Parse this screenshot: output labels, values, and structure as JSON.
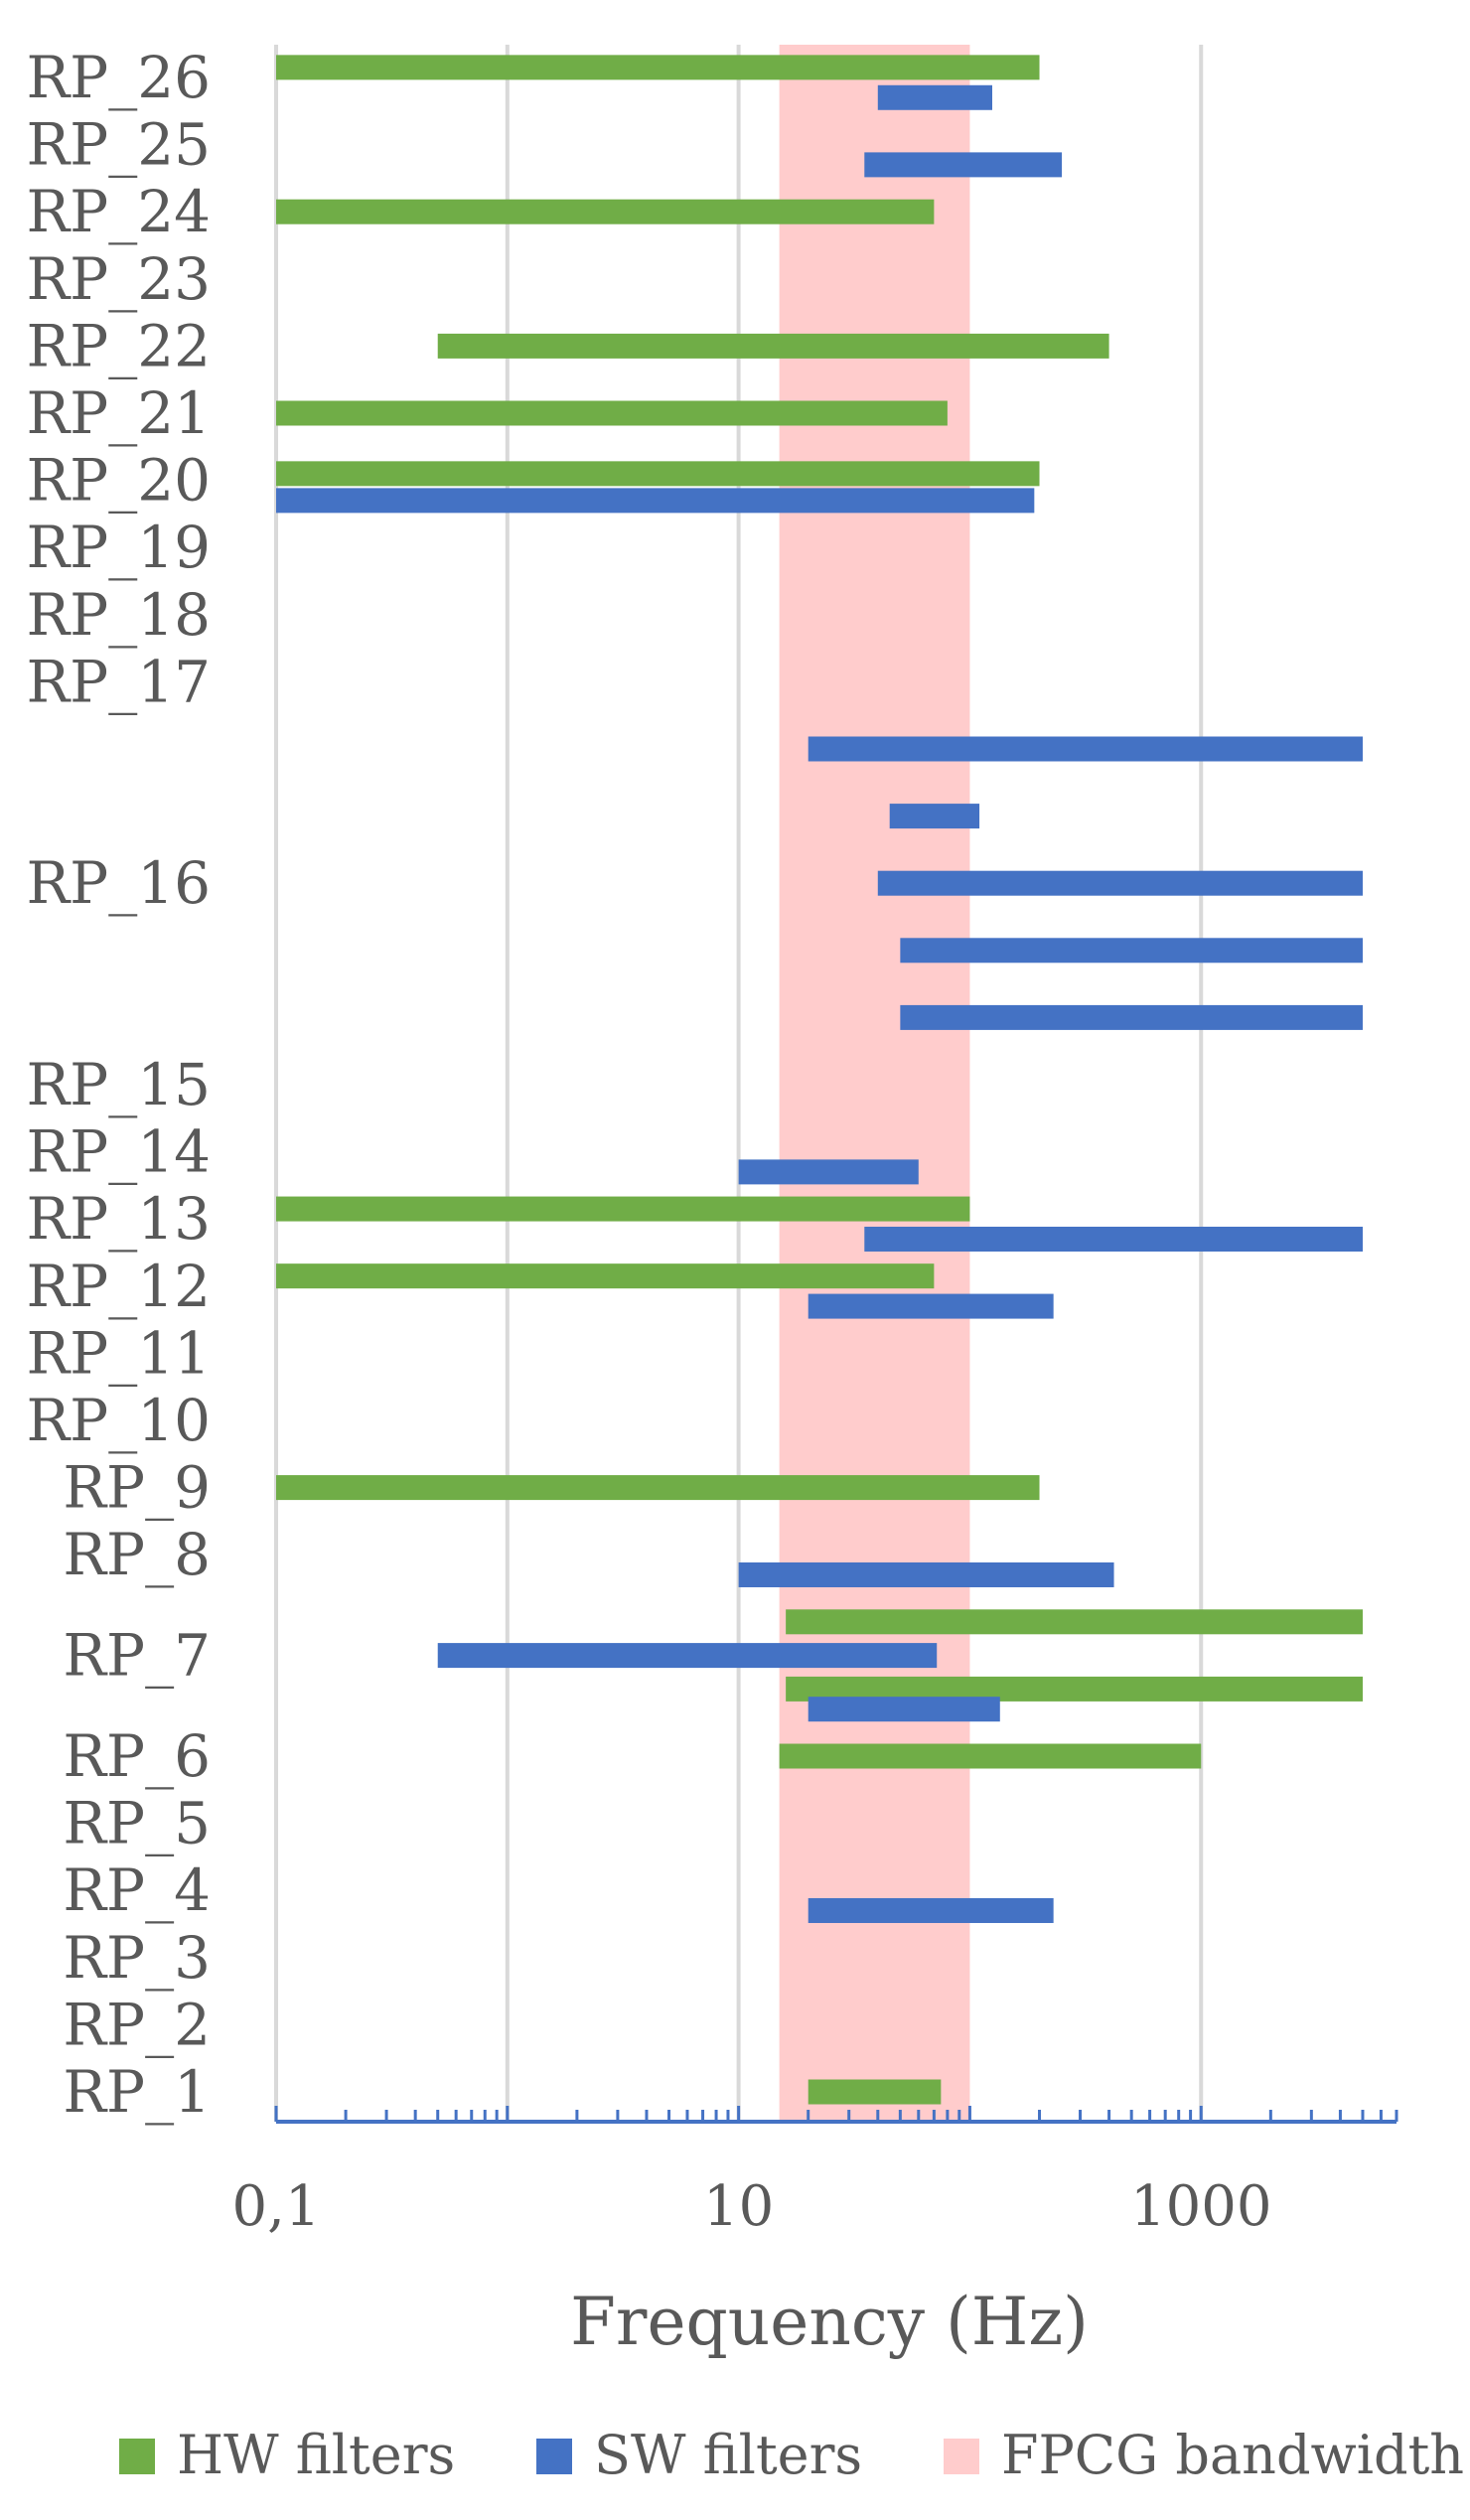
{
  "chart_data": {
    "type": "bar",
    "orientation": "horizontal-range",
    "xlabel": "Frequency (Hz)",
    "x_scale": "log",
    "xlim": [
      0.1,
      7000
    ],
    "x_ticks": [
      {
        "value": 0.1,
        "label": "0,1"
      },
      {
        "value": 10,
        "label": "10"
      },
      {
        "value": 1000,
        "label": "1000"
      }
    ],
    "grid_lines_x": [
      0.1,
      1,
      10,
      1000
    ],
    "row_labels": [
      {
        "label": "RP_26",
        "row": 0
      },
      {
        "label": "RP_25",
        "row": 1
      },
      {
        "label": "RP_24",
        "row": 2
      },
      {
        "label": "RP_23",
        "row": 3
      },
      {
        "label": "RP_22",
        "row": 4
      },
      {
        "label": "RP_21",
        "row": 5
      },
      {
        "label": "RP_20",
        "row": 6
      },
      {
        "label": "RP_19",
        "row": 7
      },
      {
        "label": "RP_18",
        "row": 8
      },
      {
        "label": "RP_17",
        "row": 9
      },
      {
        "label": "RP_16",
        "row": 12
      },
      {
        "label": "RP_15",
        "row": 15
      },
      {
        "label": "RP_14",
        "row": 16
      },
      {
        "label": "RP_13",
        "row": 17
      },
      {
        "label": "RP_12",
        "row": 18
      },
      {
        "label": "RP_11",
        "row": 19
      },
      {
        "label": "RP_10",
        "row": 20
      },
      {
        "label": "RP_9",
        "row": 21
      },
      {
        "label": "RP_8",
        "row": 22
      },
      {
        "label": "RP_7",
        "row": 23.5
      },
      {
        "label": "RP_6",
        "row": 25
      },
      {
        "label": "RP_5",
        "row": 26
      },
      {
        "label": "RP_4",
        "row": 27
      },
      {
        "label": "RP_3",
        "row": 28
      },
      {
        "label": "RP_2",
        "row": 29
      },
      {
        "label": "RP_1",
        "row": 30
      }
    ],
    "total_rows": 31,
    "series": [
      {
        "name": "HW filters",
        "color": "#70AD47",
        "bars": [
          {
            "row": 0,
            "offset": -0.15,
            "from": 0.1,
            "to": 200
          },
          {
            "row": 2,
            "offset": 0,
            "from": 0.1,
            "to": 70
          },
          {
            "row": 4,
            "offset": 0,
            "from": 0.5,
            "to": 400
          },
          {
            "row": 5,
            "offset": 0,
            "from": 0.1,
            "to": 80
          },
          {
            "row": 6,
            "offset": -0.1,
            "from": 0.1,
            "to": 200
          },
          {
            "row": 17,
            "offset": -0.15,
            "from": 0.1,
            "to": 100
          },
          {
            "row": 18,
            "offset": -0.15,
            "from": 0.1,
            "to": 70
          },
          {
            "row": 21,
            "offset": 0,
            "from": 0.1,
            "to": 200
          },
          {
            "row": 23,
            "offset": 0,
            "from": 16,
            "to": 5000
          },
          {
            "row": 24,
            "offset": 0,
            "from": 16,
            "to": 5000
          },
          {
            "row": 25,
            "offset": 0,
            "from": 15,
            "to": 1000
          },
          {
            "row": 30,
            "offset": 0,
            "from": 20,
            "to": 75
          }
        ]
      },
      {
        "name": "SW filters",
        "color": "#4472C4",
        "bars": [
          {
            "row": 0,
            "offset": 0.3,
            "from": 40,
            "to": 125
          },
          {
            "row": 1,
            "offset": 0.3,
            "from": 35,
            "to": 250
          },
          {
            "row": 6,
            "offset": 0.3,
            "from": 0.1,
            "to": 190
          },
          {
            "row": 10,
            "offset": 0,
            "from": 20,
            "to": 5000
          },
          {
            "row": 11,
            "offset": 0,
            "from": 45,
            "to": 110
          },
          {
            "row": 12,
            "offset": 0,
            "from": 40,
            "to": 5000
          },
          {
            "row": 13,
            "offset": 0,
            "from": 50,
            "to": 5000
          },
          {
            "row": 14,
            "offset": 0,
            "from": 50,
            "to": 5000
          },
          {
            "row": 16,
            "offset": 0.3,
            "from": 10,
            "to": 60
          },
          {
            "row": 17,
            "offset": 0.3,
            "from": 35,
            "to": 5000
          },
          {
            "row": 18,
            "offset": 0.3,
            "from": 20,
            "to": 230
          },
          {
            "row": 22,
            "offset": 0.3,
            "from": 10,
            "to": 420
          },
          {
            "row": 23.5,
            "offset": 0,
            "from": 0.5,
            "to": 72
          },
          {
            "row": 24,
            "offset": 0.3,
            "from": 20,
            "to": 135
          },
          {
            "row": 27,
            "offset": 0.3,
            "from": 20,
            "to": 230
          }
        ]
      }
    ],
    "band": {
      "name": "FPCG bandwidth",
      "color": "#FFCCCC",
      "from": 15,
      "to": 100
    },
    "legend_position": "bottom"
  }
}
